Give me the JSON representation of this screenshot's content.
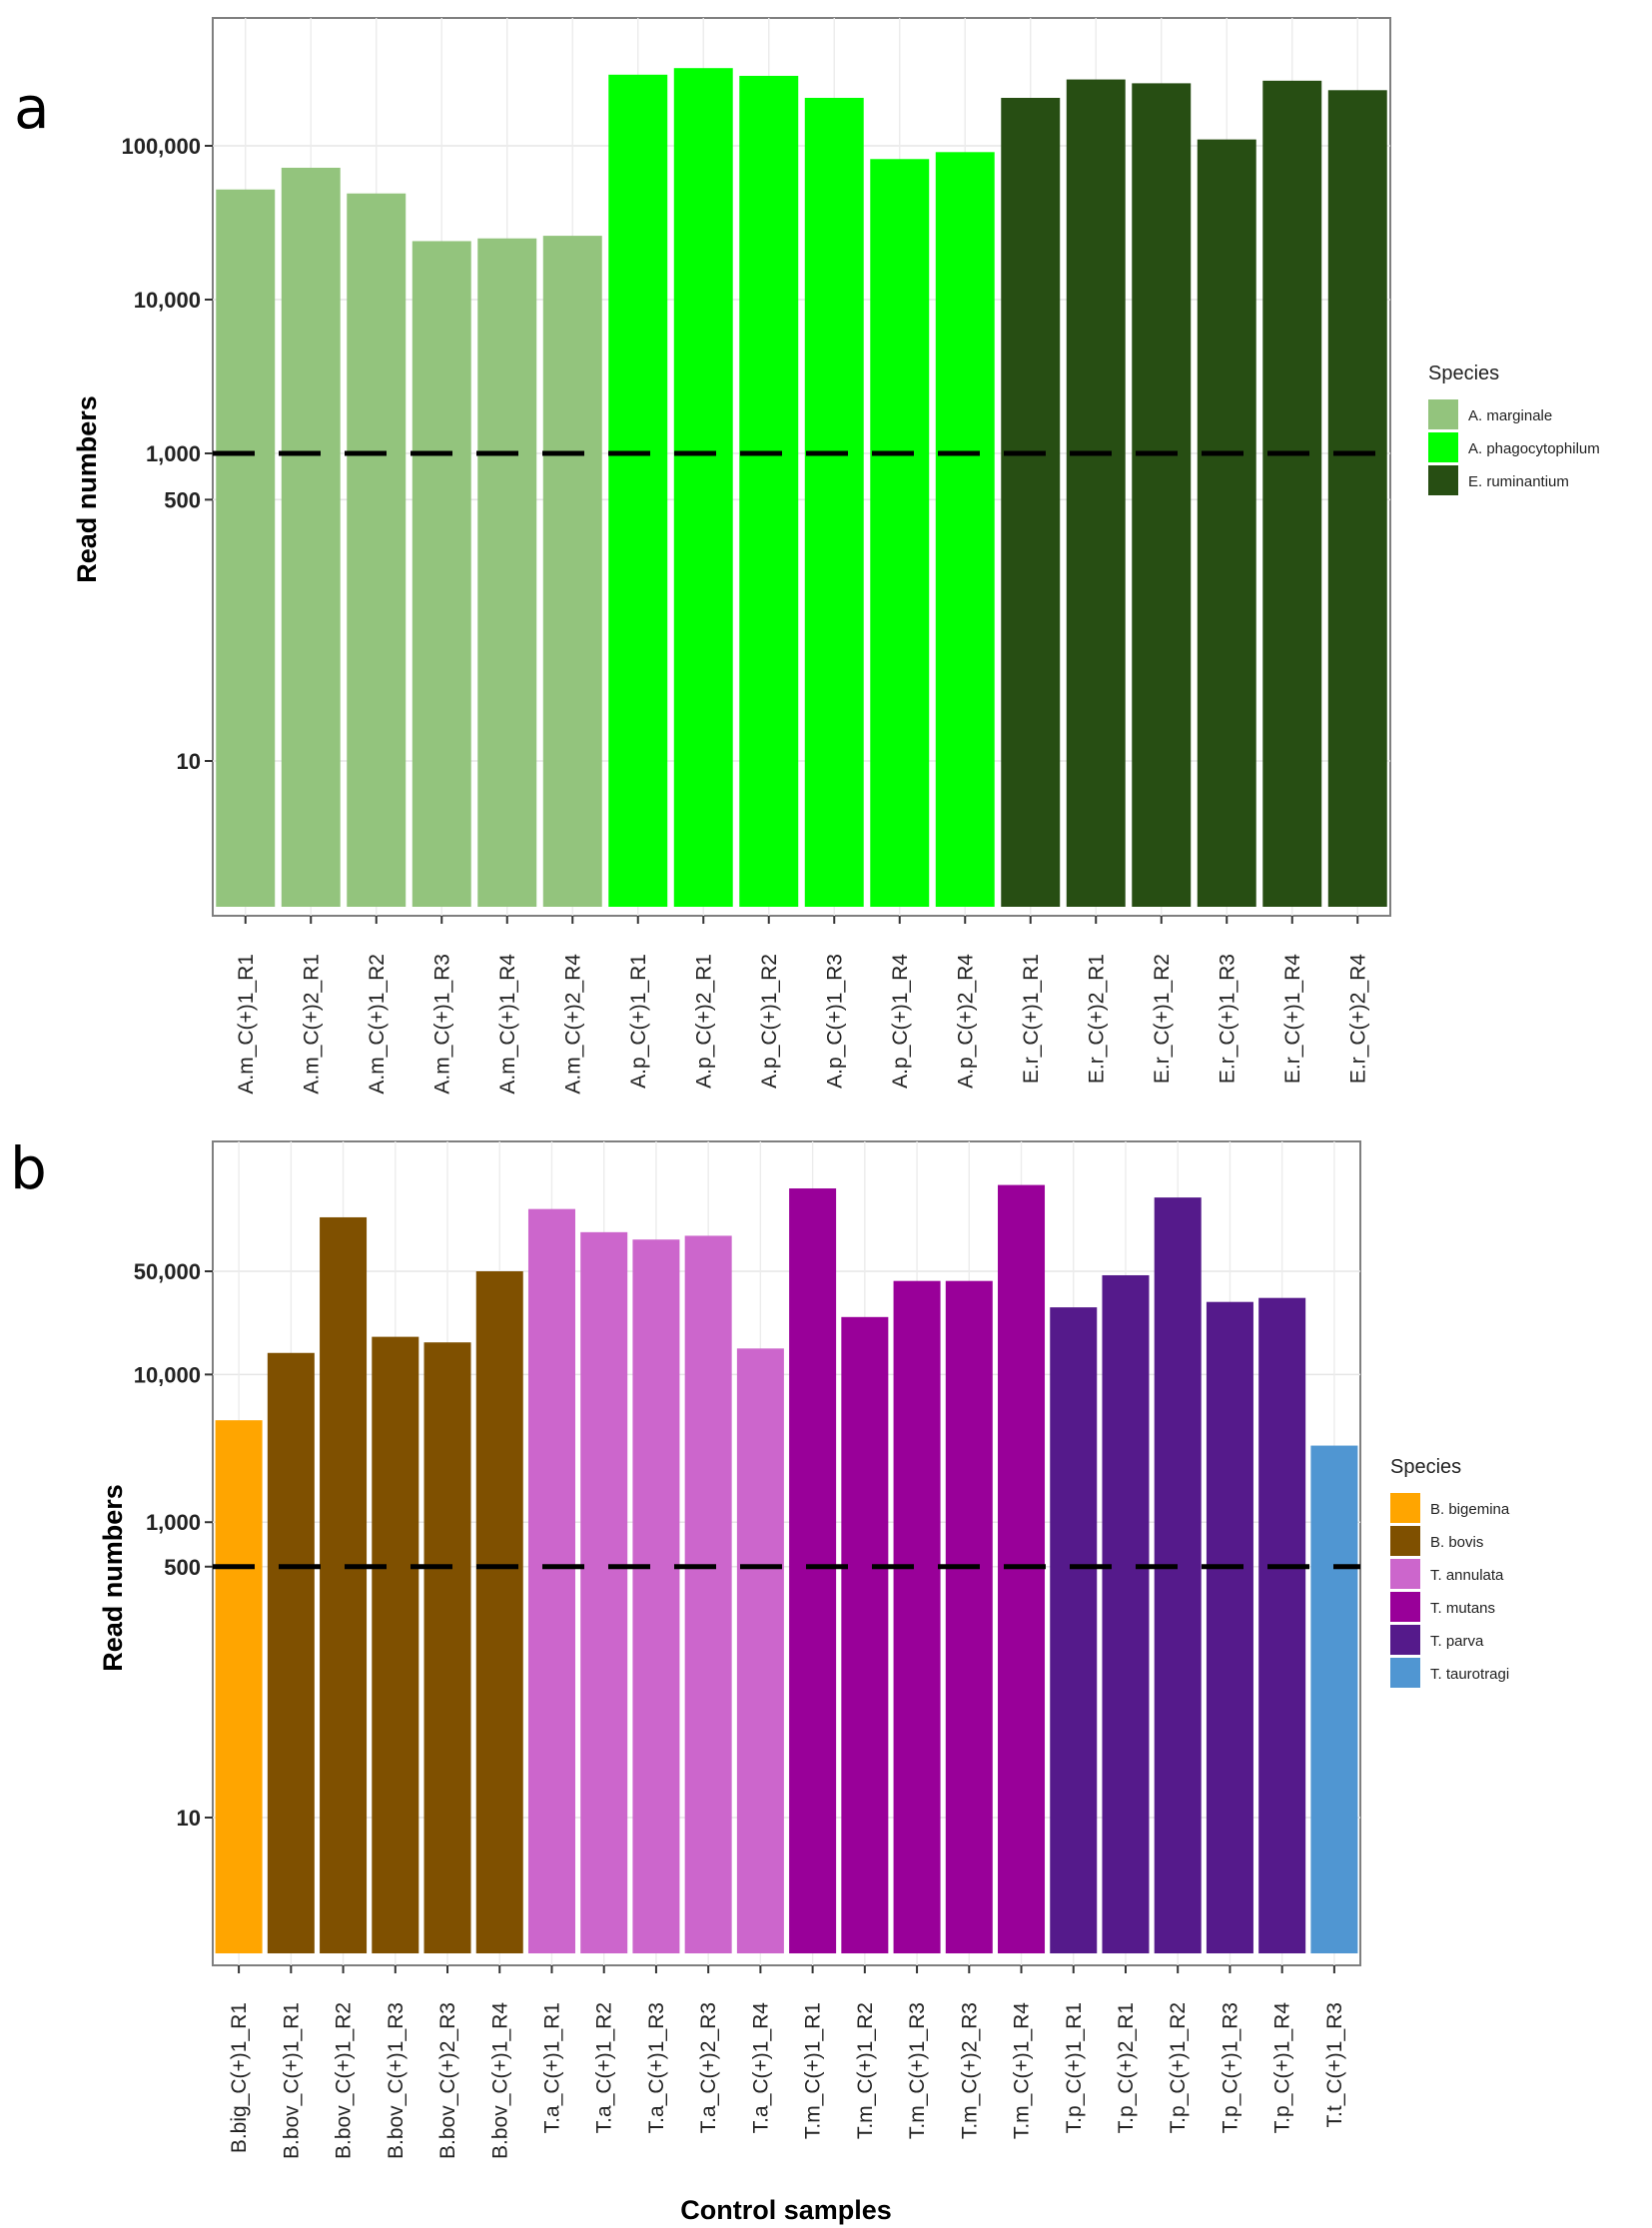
{
  "figure": {
    "xlabel_shared": "Control samples"
  },
  "chart_data": [
    {
      "panel_label": "a",
      "type": "bar",
      "scale": "log10",
      "ylabel": "Read numbers",
      "xlabel": "",
      "ylim": [
        1,
        600000
      ],
      "yticks": [
        10,
        500,
        1000,
        10000,
        100000
      ],
      "ytick_labels": [
        "10",
        "500",
        "1,000",
        "10,000",
        "100,000"
      ],
      "threshold": 1000,
      "legend_title": "Species",
      "legend_position": "right",
      "species": [
        {
          "name": "A. marginale",
          "color": "#93c47d"
        },
        {
          "name": "A. phagocytophilum",
          "color": "#00ff00"
        },
        {
          "name": "E. ruminantium",
          "color": "#274e13"
        }
      ],
      "categories": [
        "A.m_C(+)1_R1",
        "A.m_C(+)2_R1",
        "A.m_C(+)1_R2",
        "A.m_C(+)1_R3",
        "A.m_C(+)1_R4",
        "A.m_C(+)2_R4",
        "A.p_C(+)1_R1",
        "A.p_C(+)2_R1",
        "A.p_C(+)1_R2",
        "A.p_C(+)1_R3",
        "A.p_C(+)1_R4",
        "A.p_C(+)2_R4",
        "E.r_C(+)1_R1",
        "E.r_C(+)2_R1",
        "E.r_C(+)1_R2",
        "E.r_C(+)1_R3",
        "E.r_C(+)1_R4",
        "E.r_C(+)2_R4"
      ],
      "values": [
        52000,
        72000,
        49000,
        24000,
        25000,
        26000,
        290000,
        320000,
        285000,
        205000,
        82000,
        91000,
        205000,
        270000,
        255000,
        110000,
        265000,
        230000
      ],
      "species_index": [
        0,
        0,
        0,
        0,
        0,
        0,
        1,
        1,
        1,
        1,
        1,
        1,
        2,
        2,
        2,
        2,
        2,
        2
      ]
    },
    {
      "panel_label": "b",
      "type": "bar",
      "scale": "log10",
      "ylabel": "Read numbers",
      "xlabel": "Control samples",
      "ylim": [
        1,
        250000
      ],
      "yticks": [
        10,
        500,
        1000,
        10000,
        50000
      ],
      "ytick_labels": [
        "10",
        "500",
        "1,000",
        "10,000",
        "50,000"
      ],
      "threshold": 500,
      "legend_title": "Species",
      "legend_position": "right",
      "species": [
        {
          "name": "B. bigemina",
          "color": "#ffa500"
        },
        {
          "name": "B. bovis",
          "color": "#7f5000"
        },
        {
          "name": "T. annulata",
          "color": "#cc66cc"
        },
        {
          "name": "T. mutans",
          "color": "#990099"
        },
        {
          "name": "T. parva",
          "color": "#551a8b"
        },
        {
          "name": "T. taurotragi",
          "color": "#5096d2"
        }
      ],
      "categories": [
        "B.big_C(+)1_R1",
        "B.bov_C(+)1_R1",
        "B.bov_C(+)1_R2",
        "B.bov_C(+)1_R3",
        "B.bov_C(+)2_R3",
        "B.bov_C(+)1_R4",
        "T.a_C(+)1_R1",
        "T.a_C(+)1_R2",
        "T.a_C(+)1_R3",
        "T.a_C(+)2_R3",
        "T.a_C(+)1_R4",
        "T.m_C(+)1_R1",
        "T.m_C(+)1_R2",
        "T.m_C(+)1_R3",
        "T.m_C(+)2_R3",
        "T.m_C(+)1_R4",
        "T.p_C(+)1_R1",
        "T.p_C(+)2_R1",
        "T.p_C(+)1_R2",
        "T.p_C(+)1_R3",
        "T.p_C(+)1_R4",
        "T.t_C(+)1_R3"
      ],
      "values": [
        4900,
        14000,
        116000,
        18000,
        16500,
        50000,
        132000,
        92000,
        82000,
        87000,
        15000,
        182000,
        24500,
        43000,
        43000,
        192000,
        28500,
        47000,
        158000,
        31000,
        33000,
        3300
      ],
      "species_index": [
        0,
        1,
        1,
        1,
        1,
        1,
        2,
        2,
        2,
        2,
        2,
        3,
        3,
        3,
        3,
        3,
        4,
        4,
        4,
        4,
        4,
        5
      ]
    }
  ]
}
